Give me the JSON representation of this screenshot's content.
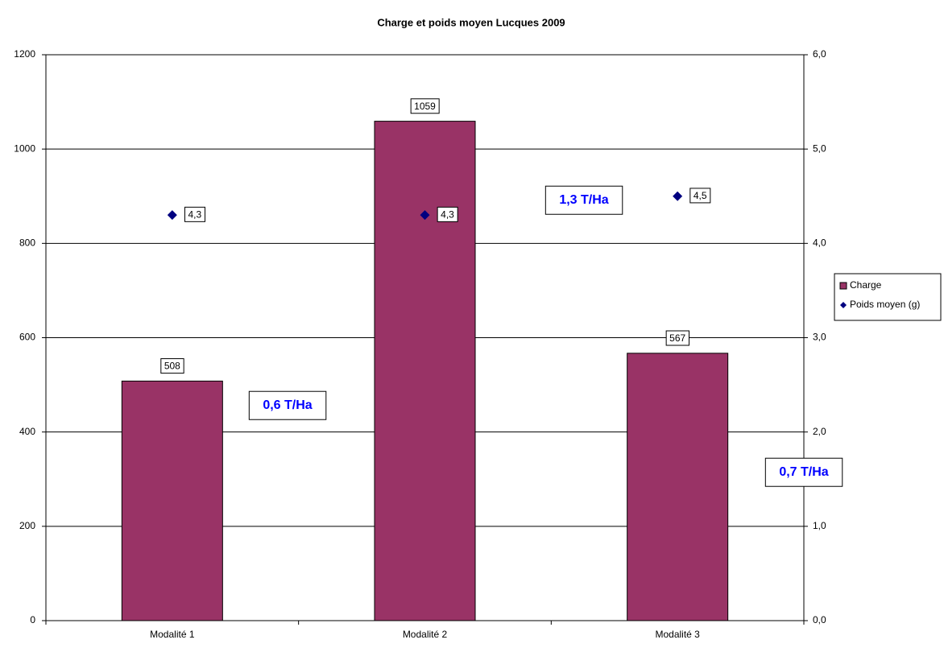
{
  "chart_data": {
    "type": "bar",
    "title": "Charge et poids moyen Lucques 2009",
    "categories": [
      "Modalité 1",
      "Modalité 2",
      "Modalité 3"
    ],
    "series": [
      {
        "name": "Charge",
        "type": "bar",
        "color": "#993366",
        "values": [
          508,
          1059,
          567
        ]
      },
      {
        "name": "Poids moyen (g)",
        "type": "scatter",
        "axis": "y2",
        "color": "#000080",
        "values": [
          4.3,
          4.3,
          4.5
        ],
        "value_labels": [
          "4,3",
          "4,3",
          "4,5"
        ]
      }
    ],
    "ylim": [
      0,
      1200
    ],
    "yticks": [
      0,
      200,
      400,
      600,
      800,
      1000,
      1200
    ],
    "y2lim": [
      0,
      6
    ],
    "y2ticks": [
      {
        "value": 0,
        "label": "0,0"
      },
      {
        "value": 1,
        "label": "1,0"
      },
      {
        "value": 2,
        "label": "2,0"
      },
      {
        "value": 3,
        "label": "3,0"
      },
      {
        "value": 4,
        "label": "4,0"
      },
      {
        "value": 5,
        "label": "5,0"
      },
      {
        "value": 6,
        "label": "6,0"
      }
    ],
    "grid": true,
    "legend": "right",
    "annotations": [
      "0,6 T/Ha",
      "1,3 T/Ha",
      "0,7 T/Ha"
    ]
  }
}
